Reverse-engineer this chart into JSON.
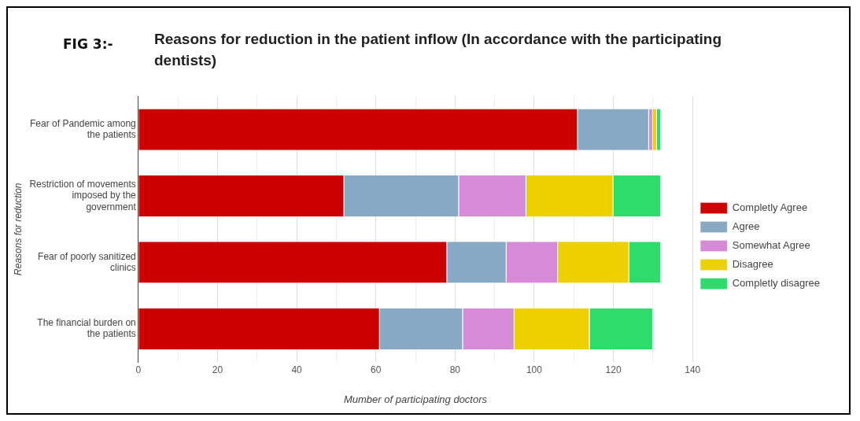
{
  "chart_data": {
    "type": "bar",
    "orientation": "horizontal",
    "stacked": true,
    "title": "Reasons for reduction in the patient inflow (In accordance with the participating dentists)",
    "annotations": [
      "FIG 3:-"
    ],
    "xlabel": "Mumber of participating doctors",
    "ylabel": "Reasons for reduction",
    "categories": [
      "Fear of Pandemic among the patients",
      "Restriction of movements imposed by the government",
      "Fear of poorly sanitized clinics",
      "The financial burden on the patients"
    ],
    "series": [
      {
        "name": "Completly Agree",
        "color": "#cc0000",
        "values": [
          111,
          52,
          78,
          61
        ]
      },
      {
        "name": "Agree",
        "color": "#87a9c4",
        "values": [
          18,
          29,
          15,
          21
        ]
      },
      {
        "name": "Somewhat Agree",
        "color": "#d68bd6",
        "values": [
          1,
          17,
          13,
          13
        ]
      },
      {
        "name": "Disagree",
        "color": "#ecd000",
        "values": [
          1,
          22,
          18,
          19
        ]
      },
      {
        "name": "Completly disagree",
        "color": "#2edc6c",
        "values": [
          1,
          12,
          8,
          16
        ]
      }
    ],
    "xlim": [
      0,
      140
    ],
    "xticks": [
      0,
      {
        "value": 10,
        "label": null
      },
      20,
      {
        "value": 30,
        "label": null
      },
      40,
      {
        "value": 50,
        "label": null
      },
      60,
      {
        "value": 70,
        "label": null
      },
      80,
      {
        "value": 90,
        "label": null
      },
      100,
      {
        "value": 110,
        "label": null
      },
      120,
      {
        "value": 130,
        "label": null
      },
      140
    ],
    "grid": "x",
    "legend": "right"
  }
}
